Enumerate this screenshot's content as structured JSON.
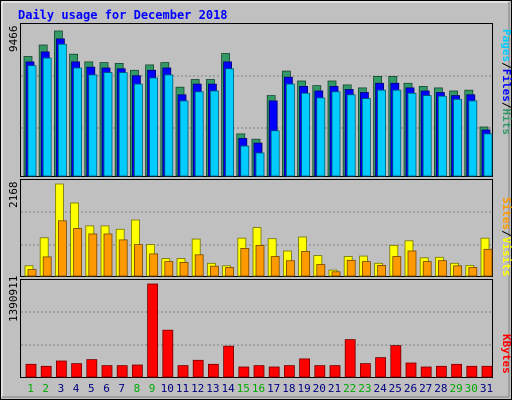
{
  "title": "Daily usage for December 2018",
  "colors": {
    "background": "#c0c0c0",
    "title": "#0000ff",
    "hits": "#339966",
    "files": "#0000ff",
    "pages": "#00ccff",
    "visits": "#ffff00",
    "sites": "#ff9900",
    "kbytes": "#ff0000",
    "weekend_day_label": "#00aa00",
    "weekday_label": "#000080"
  },
  "chart_data": [
    {
      "type": "bar",
      "panel": "hits-files-pages",
      "title": "Daily usage for December 2018",
      "ymax_label": "9466",
      "ylim": [
        0,
        9466
      ],
      "legend": [
        "Pages",
        "/",
        "Files",
        "/",
        "Hits"
      ],
      "categories": [
        "1",
        "2",
        "3",
        "4",
        "5",
        "6",
        "7",
        "8",
        "9",
        "10",
        "11",
        "12",
        "13",
        "14",
        "15",
        "16",
        "17",
        "18",
        "19",
        "20",
        "21",
        "22",
        "23",
        "24",
        "25",
        "26",
        "27",
        "28",
        "29",
        "30",
        "31"
      ],
      "weekend": [
        "1",
        "2",
        "8",
        "9",
        "15",
        "16",
        "22",
        "23",
        "29",
        "30"
      ],
      "series": [
        {
          "name": "Hits",
          "values": [
            7800,
            8550,
            9466,
            7950,
            7450,
            7400,
            7350,
            6900,
            7250,
            7400,
            5800,
            6300,
            6300,
            8000,
            2750,
            2400,
            5250,
            6850,
            6200,
            5900,
            6200,
            5950,
            5750,
            6500,
            6500,
            6050,
            5850,
            5750,
            5550,
            5600,
            3200
          ]
        },
        {
          "name": "Files",
          "values": [
            7450,
            8100,
            8950,
            7450,
            7100,
            7050,
            7000,
            6550,
            6900,
            7050,
            5300,
            6000,
            6000,
            7450,
            2450,
            2150,
            4900,
            6450,
            5850,
            5550,
            5850,
            5650,
            5450,
            6050,
            6050,
            5750,
            5550,
            5450,
            5250,
            5300,
            3000
          ]
        },
        {
          "name": "Pages",
          "values": [
            7200,
            7700,
            8600,
            7050,
            6600,
            6750,
            6750,
            6000,
            6400,
            6600,
            4900,
            5500,
            5550,
            7000,
            1950,
            1500,
            2950,
            6000,
            5400,
            5100,
            5500,
            5300,
            5050,
            5600,
            5600,
            5400,
            5250,
            5200,
            5000,
            4900,
            2750
          ]
        }
      ]
    },
    {
      "type": "bar",
      "panel": "visits-sites",
      "ymax_label": "2168",
      "ylim": [
        0,
        2168
      ],
      "legend": [
        "Sites",
        "/",
        "Visits"
      ],
      "categories": [
        "1",
        "2",
        "3",
        "4",
        "5",
        "6",
        "7",
        "8",
        "9",
        "10",
        "11",
        "12",
        "13",
        "14",
        "15",
        "16",
        "17",
        "18",
        "19",
        "20",
        "21",
        "22",
        "23",
        "24",
        "25",
        "26",
        "27",
        "28",
        "29",
        "30",
        "31"
      ],
      "series": [
        {
          "name": "Visits",
          "values": [
            240,
            900,
            2168,
            1720,
            1180,
            1180,
            1100,
            1320,
            740,
            410,
            410,
            870,
            300,
            240,
            890,
            1140,
            880,
            590,
            920,
            480,
            140,
            460,
            470,
            300,
            720,
            830,
            430,
            440,
            300,
            250,
            890
          ]
        },
        {
          "name": "Sites",
          "values": [
            150,
            450,
            1300,
            1120,
            990,
            990,
            850,
            740,
            520,
            340,
            320,
            500,
            230,
            200,
            650,
            720,
            460,
            360,
            580,
            270,
            100,
            370,
            340,
            250,
            460,
            590,
            340,
            360,
            240,
            200,
            630
          ]
        }
      ]
    },
    {
      "type": "bar",
      "panel": "kbytes",
      "ymax_label": "1390911",
      "ylim": [
        0,
        1390911
      ],
      "legend": [
        "KBytes"
      ],
      "categories": [
        "1",
        "2",
        "3",
        "4",
        "5",
        "6",
        "7",
        "8",
        "9",
        "10",
        "11",
        "12",
        "13",
        "14",
        "15",
        "16",
        "17",
        "18",
        "19",
        "20",
        "21",
        "22",
        "23",
        "24",
        "25",
        "26",
        "27",
        "28",
        "29",
        "30",
        "31"
      ],
      "series": [
        {
          "name": "KBytes",
          "values": [
            190000,
            160000,
            240000,
            200000,
            260000,
            170000,
            170000,
            180000,
            1390911,
            700000,
            170000,
            250000,
            190000,
            460000,
            150000,
            170000,
            150000,
            170000,
            270000,
            170000,
            170000,
            560000,
            200000,
            290000,
            470000,
            210000,
            150000,
            160000,
            190000,
            160000,
            160000
          ]
        }
      ]
    }
  ]
}
